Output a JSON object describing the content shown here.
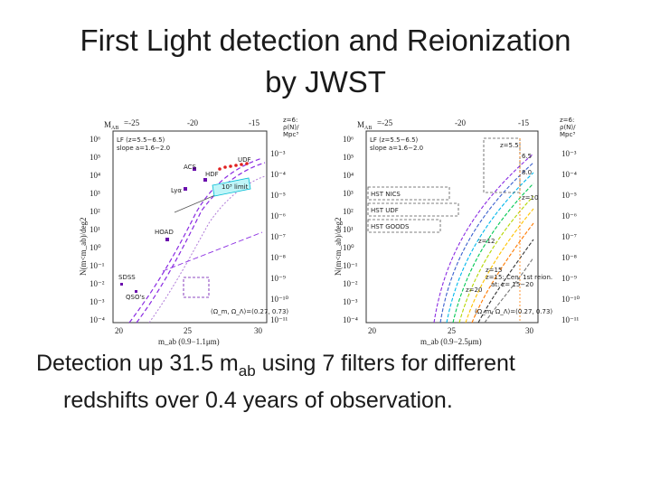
{
  "slide": {
    "title_line1": "First Light detection and Reionization",
    "title_line2": "by JWST",
    "caption": {
      "part1": "Detection up 31.5 m",
      "subscript": "ab",
      "part2": " using 7 filters for different",
      "line2": "redshifts over 0.4 years of observation."
    }
  },
  "figure": {
    "left_panel": {
      "top_label_m": "M",
      "top_label_sub": "AB",
      "top_ticks": [
        "=-25",
        "-20",
        "-15"
      ],
      "right_header": [
        "z=6:",
        "ρ(N)/",
        "Mpc³"
      ],
      "y_ticks": [
        "10⁶",
        "10⁵",
        "10⁴",
        "10³",
        "10²",
        "10¹",
        "10⁰",
        "10⁻¹",
        "10⁻²",
        "10⁻³",
        "10⁻⁴"
      ],
      "right_ticks": [
        "10⁻³",
        "10⁻⁴",
        "10⁻⁵",
        "10⁻⁶",
        "10⁻⁷",
        "10⁻⁸",
        "10⁻⁹",
        "10⁻¹⁰",
        "10⁻¹¹"
      ],
      "x_ticks": [
        "20",
        "25",
        "30"
      ],
      "y_label": "N(m<m_ab)/deg2",
      "x_label": "m_ab (0.9−1.1μm)",
      "legend1": "LF (z=5.5−6.5)",
      "legend2": "slope a=1.6−2.0",
      "labels": [
        "UDF",
        "ACS",
        "HDF",
        "Lyα",
        "10³ limit",
        "HOAD",
        "SDSS",
        "QSO's"
      ],
      "params": "(Ω_m, Ω_Λ)=(0.27, 0.73)"
    },
    "right_panel": {
      "top_label_m": "M",
      "top_label_sub": "AB",
      "top_ticks": [
        "=-25",
        "-20",
        "-15"
      ],
      "right_header": [
        "z=6:",
        "ρ(N)/",
        "Mpc³"
      ],
      "y_ticks": [
        "10⁶",
        "10⁵",
        "10⁴",
        "10³",
        "10²",
        "10¹",
        "10⁰",
        "10⁻¹",
        "10⁻²",
        "10⁻³",
        "10⁻⁴"
      ],
      "right_ticks": [
        "10⁻³",
        "10⁻⁴",
        "10⁻⁵",
        "10⁻⁶",
        "10⁻⁷",
        "10⁻⁸",
        "10⁻⁹",
        "10⁻¹⁰",
        "10⁻¹¹"
      ],
      "x_ticks": [
        "20",
        "25",
        "30"
      ],
      "y_label": "N(m<m_ab)/deg2",
      "x_label": "m_ab (0.9−2.5μm)",
      "legend1": "LF (z=5.5−6.5)",
      "legend2": "slope a=1.6−2.0",
      "survey_labels": [
        "HST NICS",
        "HST UDF",
        "HST GOODS"
      ],
      "z_labels": [
        "z=5.5",
        "6.5",
        "8.0",
        "z=10",
        "z=12",
        "z=15",
        "z=20"
      ],
      "note1": "z=15: Cen. 1st reion.",
      "note2": "at: z= 15−20",
      "params": "(Ω_m, Ω_Λ)=(0.27, 0.73)"
    }
  }
}
